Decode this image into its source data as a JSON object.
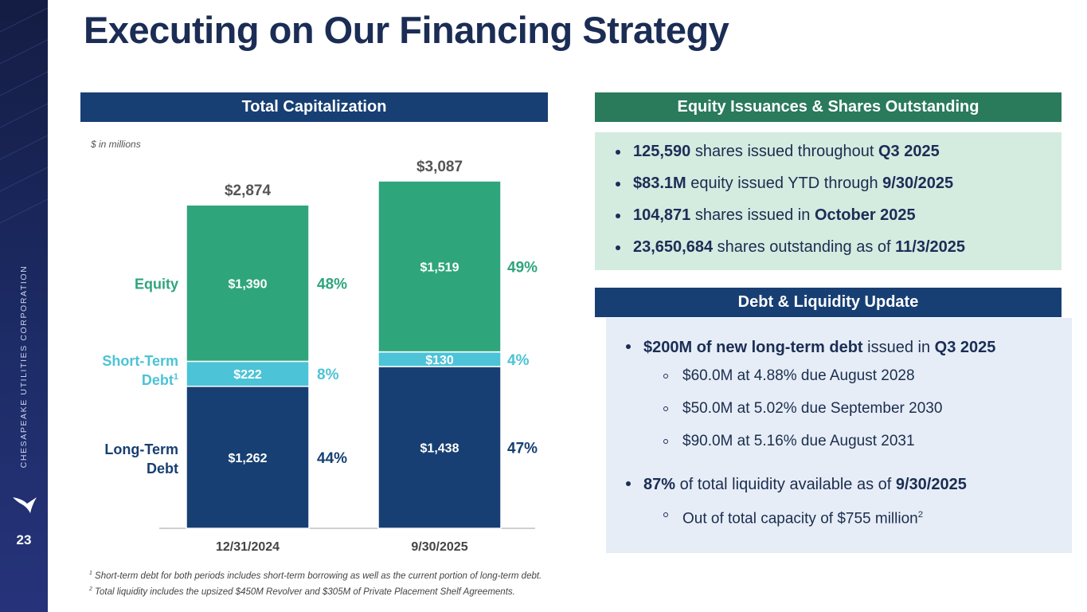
{
  "slide": {
    "title": "Executing on Our Financing Strategy",
    "page_number": "23",
    "company_vertical": "CHESAPEAKE UTILITIES CORPORATION"
  },
  "capitalization": {
    "header": "Total Capitalization",
    "units_note": "$ in millions"
  },
  "chart_data": {
    "type": "bar",
    "stacked": true,
    "categories": [
      "12/31/2024",
      "9/30/2025"
    ],
    "series": [
      {
        "name": "Long-Term Debt",
        "values": [
          1262,
          1438
        ],
        "labels": [
          "$1,262",
          "$1,438"
        ],
        "percents": [
          "44%",
          "47%"
        ],
        "color": "#173f73"
      },
      {
        "name": "Short-Term Debt",
        "name_sup": "1",
        "values": [
          222,
          130
        ],
        "labels": [
          "$222",
          "$130"
        ],
        "percents": [
          "8%",
          "4%"
        ],
        "color": "#4cc3d6"
      },
      {
        "name": "Equity",
        "values": [
          1390,
          1519
        ],
        "labels": [
          "$1,390",
          "$1,519"
        ],
        "percents": [
          "48%",
          "49%"
        ],
        "color": "#2fa57c"
      }
    ],
    "totals": [
      "$2,874",
      "$3,087"
    ],
    "category_colors": {
      "Long-Term Debt": "#173f73",
      "Short-Term Debt": "#4cc3d6",
      "Equity": "#2fa57c"
    },
    "ylim": [
      0,
      3300
    ],
    "legend": "left"
  },
  "equity": {
    "header": "Equity Issuances & Shares Outstanding",
    "items": [
      {
        "b1": "125,590",
        "t1": " shares issued throughout ",
        "b2": "Q3 2025"
      },
      {
        "b1": "$83.1M",
        "t1": " equity issued YTD through ",
        "b2": "9/30/2025"
      },
      {
        "b1": "104,871",
        "t1": " shares issued in ",
        "b2": "October 2025"
      },
      {
        "b1": "23,650,684",
        "t1": " shares outstanding as of ",
        "b2": "11/3/2025"
      }
    ]
  },
  "debt": {
    "header": "Debt & Liquidity Update",
    "item1": {
      "b1": "$200M of new long-term debt",
      "t1": " issued in ",
      "b2": "Q3 2025"
    },
    "sub1": [
      "$60.0M at 4.88% due August 2028",
      "$50.0M at 5.02% due September 2030",
      "$90.0M at 5.16% due August 2031"
    ],
    "item2": {
      "b1": "87%",
      "t1": " of total liquidity available as of ",
      "b2": "9/30/2025"
    },
    "sub2": {
      "text": "Out of total capacity of $755 million",
      "sup": "2"
    }
  },
  "footnotes": [
    {
      "sup": "1",
      "text": " Short-term debt for both periods includes short-term borrowing as well as the current portion of long-term debt."
    },
    {
      "sup": "2",
      "text": " Total liquidity includes the upsized $450M Revolver and $305M of Private Placement Shelf Agreements."
    }
  ]
}
